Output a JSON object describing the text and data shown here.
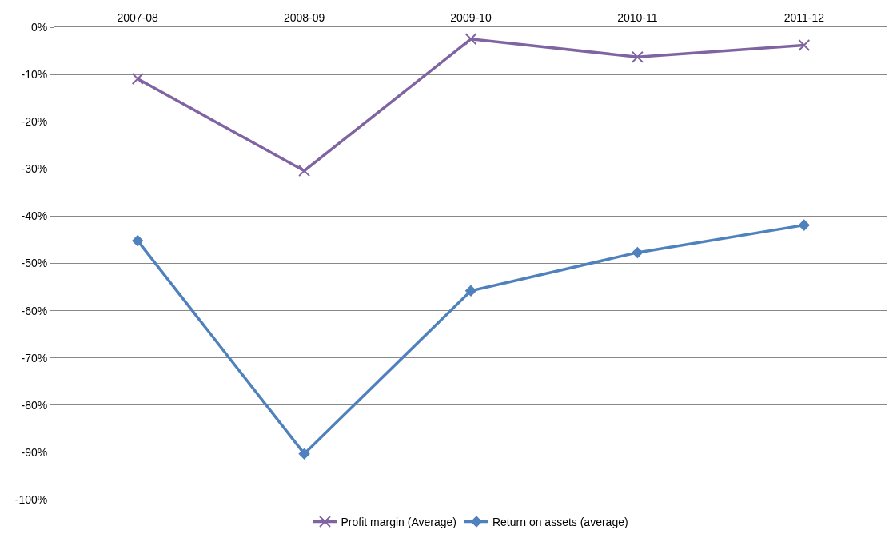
{
  "chart_data": {
    "type": "line",
    "categories": [
      "2007-08",
      "2008-09",
      "2009-10",
      "2010-11",
      "2011-12"
    ],
    "series": [
      {
        "name": "Profit margin (Average)",
        "color": "#8064a2",
        "marker": "cross",
        "values": [
          -10.9,
          -30.4,
          -2.5,
          -6.3,
          -3.8
        ]
      },
      {
        "name": "Return on assets (average)",
        "color": "#4f81bd",
        "marker": "diamond",
        "values": [
          -45.2,
          -90.3,
          -55.8,
          -47.7,
          -41.9
        ]
      }
    ],
    "ylim": [
      -100,
      0
    ],
    "yticks": [
      {
        "value": -100,
        "label": "-100%"
      },
      {
        "value": -90,
        "label": "-90%"
      },
      {
        "value": -80,
        "label": "-80%"
      },
      {
        "value": -70,
        "label": "-70%"
      },
      {
        "value": -60,
        "label": "-60%"
      },
      {
        "value": -50,
        "label": "-50%"
      },
      {
        "value": -40,
        "label": "-40%"
      },
      {
        "value": -30,
        "label": "-30%"
      },
      {
        "value": -20,
        "label": "-20%"
      },
      {
        "value": -10,
        "label": "-10%"
      },
      {
        "value": 0,
        "label": "0%"
      }
    ],
    "grid": "y",
    "legend": "bottom",
    "line_style": "solid"
  }
}
